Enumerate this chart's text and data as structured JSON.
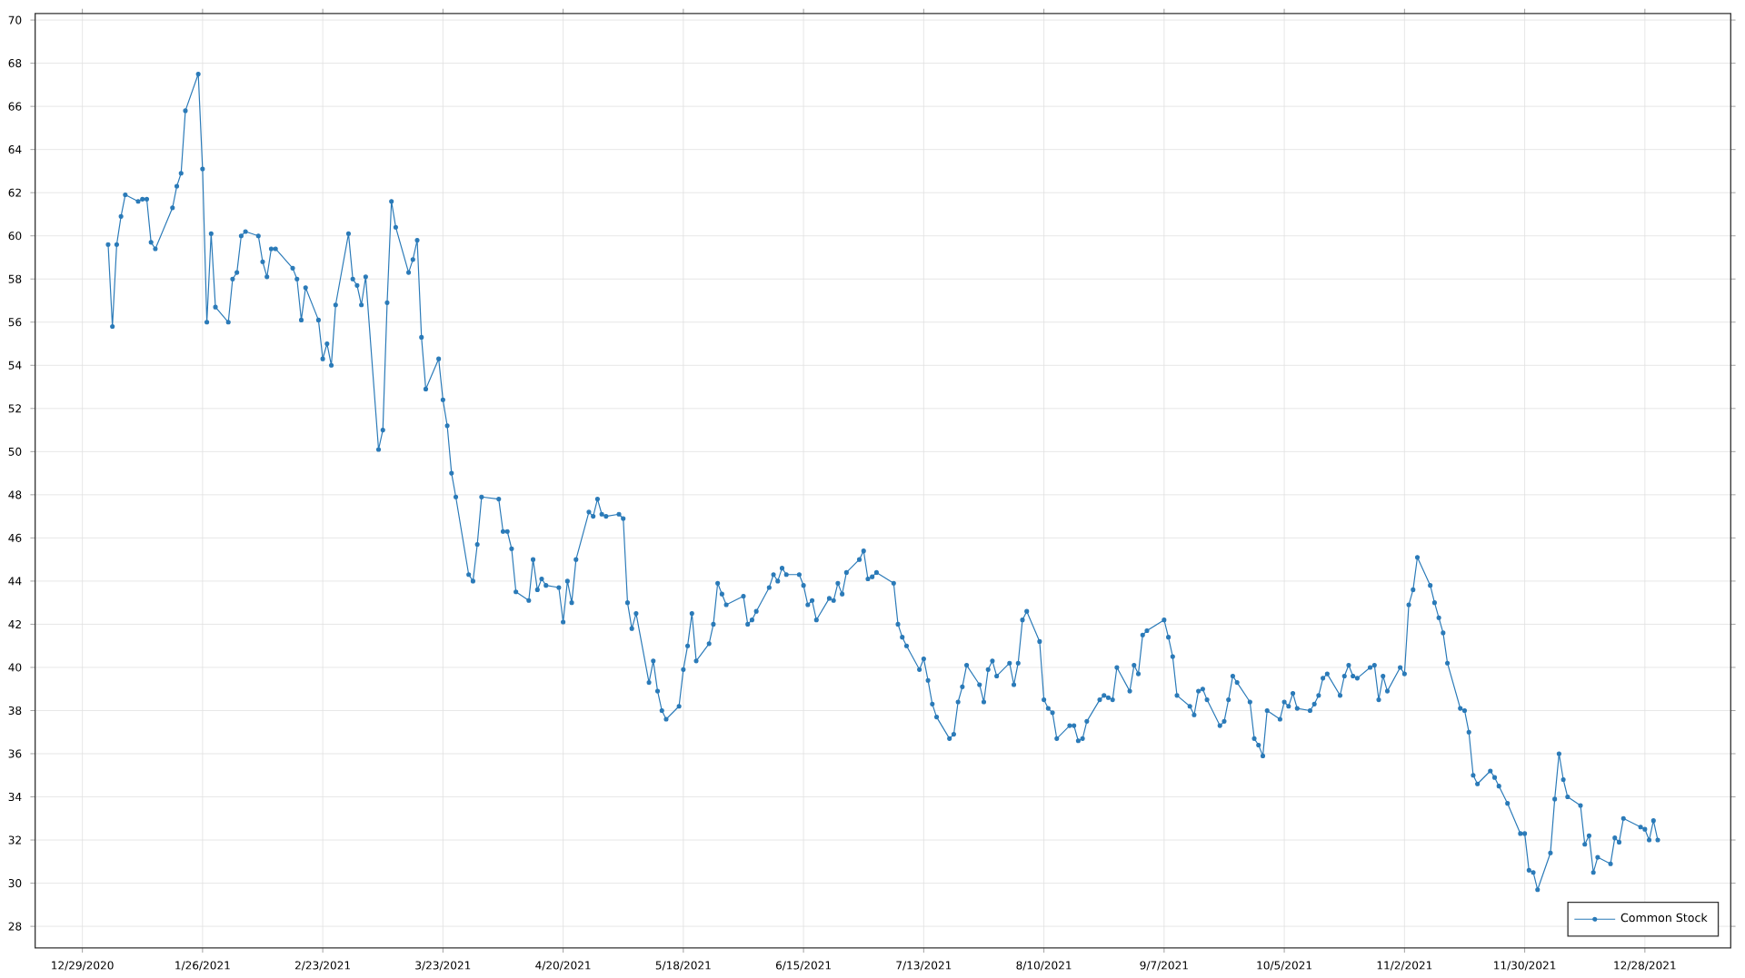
{
  "chart_data": {
    "type": "line",
    "x": [
      "2021-01-04",
      "2021-01-05",
      "2021-01-06",
      "2021-01-07",
      "2021-01-08",
      "2021-01-11",
      "2021-01-12",
      "2021-01-13",
      "2021-01-14",
      "2021-01-15",
      "2021-01-19",
      "2021-01-20",
      "2021-01-21",
      "2021-01-22",
      "2021-01-25",
      "2021-01-26",
      "2021-01-27",
      "2021-01-28",
      "2021-01-29",
      "2021-02-01",
      "2021-02-02",
      "2021-02-03",
      "2021-02-04",
      "2021-02-05",
      "2021-02-08",
      "2021-02-09",
      "2021-02-10",
      "2021-02-11",
      "2021-02-12",
      "2021-02-16",
      "2021-02-17",
      "2021-02-18",
      "2021-02-19",
      "2021-02-22",
      "2021-02-23",
      "2021-02-24",
      "2021-02-25",
      "2021-02-26",
      "2021-03-01",
      "2021-03-02",
      "2021-03-03",
      "2021-03-04",
      "2021-03-05",
      "2021-03-08",
      "2021-03-09",
      "2021-03-10",
      "2021-03-11",
      "2021-03-12",
      "2021-03-15",
      "2021-03-16",
      "2021-03-17",
      "2021-03-18",
      "2021-03-19",
      "2021-03-22",
      "2021-03-23",
      "2021-03-24",
      "2021-03-25",
      "2021-03-26",
      "2021-03-29",
      "2021-03-30",
      "2021-03-31",
      "2021-04-01",
      "2021-04-05",
      "2021-04-06",
      "2021-04-07",
      "2021-04-08",
      "2021-04-09",
      "2021-04-12",
      "2021-04-13",
      "2021-04-14",
      "2021-04-15",
      "2021-04-16",
      "2021-04-19",
      "2021-04-20",
      "2021-04-21",
      "2021-04-22",
      "2021-04-23",
      "2021-04-26",
      "2021-04-27",
      "2021-04-28",
      "2021-04-29",
      "2021-04-30",
      "2021-05-03",
      "2021-05-04",
      "2021-05-05",
      "2021-05-06",
      "2021-05-07",
      "2021-05-10",
      "2021-05-11",
      "2021-05-12",
      "2021-05-13",
      "2021-05-14",
      "2021-05-17",
      "2021-05-18",
      "2021-05-19",
      "2021-05-20",
      "2021-05-21",
      "2021-05-24",
      "2021-05-25",
      "2021-05-26",
      "2021-05-27",
      "2021-05-28",
      "2021-06-01",
      "2021-06-02",
      "2021-06-03",
      "2021-06-04",
      "2021-06-07",
      "2021-06-08",
      "2021-06-09",
      "2021-06-10",
      "2021-06-11",
      "2021-06-14",
      "2021-06-15",
      "2021-06-16",
      "2021-06-17",
      "2021-06-18",
      "2021-06-21",
      "2021-06-22",
      "2021-06-23",
      "2021-06-24",
      "2021-06-25",
      "2021-06-28",
      "2021-06-29",
      "2021-06-30",
      "2021-07-01",
      "2021-07-02",
      "2021-07-06",
      "2021-07-07",
      "2021-07-08",
      "2021-07-09",
      "2021-07-12",
      "2021-07-13",
      "2021-07-14",
      "2021-07-15",
      "2021-07-16",
      "2021-07-19",
      "2021-07-20",
      "2021-07-21",
      "2021-07-22",
      "2021-07-23",
      "2021-07-26",
      "2021-07-27",
      "2021-07-28",
      "2021-07-29",
      "2021-07-30",
      "2021-08-02",
      "2021-08-03",
      "2021-08-04",
      "2021-08-05",
      "2021-08-06",
      "2021-08-09",
      "2021-08-10",
      "2021-08-11",
      "2021-08-12",
      "2021-08-13",
      "2021-08-16",
      "2021-08-17",
      "2021-08-18",
      "2021-08-19",
      "2021-08-20",
      "2021-08-23",
      "2021-08-24",
      "2021-08-25",
      "2021-08-26",
      "2021-08-27",
      "2021-08-30",
      "2021-08-31",
      "2021-09-01",
      "2021-09-02",
      "2021-09-03",
      "2021-09-07",
      "2021-09-08",
      "2021-09-09",
      "2021-09-10",
      "2021-09-13",
      "2021-09-14",
      "2021-09-15",
      "2021-09-16",
      "2021-09-17",
      "2021-09-20",
      "2021-09-21",
      "2021-09-22",
      "2021-09-23",
      "2021-09-24",
      "2021-09-27",
      "2021-09-28",
      "2021-09-29",
      "2021-09-30",
      "2021-10-01",
      "2021-10-04",
      "2021-10-05",
      "2021-10-06",
      "2021-10-07",
      "2021-10-08",
      "2021-10-11",
      "2021-10-12",
      "2021-10-13",
      "2021-10-14",
      "2021-10-15",
      "2021-10-18",
      "2021-10-19",
      "2021-10-20",
      "2021-10-21",
      "2021-10-22",
      "2021-10-25",
      "2021-10-26",
      "2021-10-27",
      "2021-10-28",
      "2021-10-29",
      "2021-11-01",
      "2021-11-02",
      "2021-11-03",
      "2021-11-04",
      "2021-11-05",
      "2021-11-08",
      "2021-11-09",
      "2021-11-10",
      "2021-11-11",
      "2021-11-12",
      "2021-11-15",
      "2021-11-16",
      "2021-11-17",
      "2021-11-18",
      "2021-11-19",
      "2021-11-22",
      "2021-11-23",
      "2021-11-24",
      "2021-11-26",
      "2021-11-29",
      "2021-11-30",
      "2021-12-01",
      "2021-12-02",
      "2021-12-03",
      "2021-12-06",
      "2021-12-07",
      "2021-12-08",
      "2021-12-09",
      "2021-12-10",
      "2021-12-13",
      "2021-12-14",
      "2021-12-15",
      "2021-12-16",
      "2021-12-17",
      "2021-12-20",
      "2021-12-21",
      "2021-12-22",
      "2021-12-23",
      "2021-12-27",
      "2021-12-28",
      "2021-12-29",
      "2021-12-30",
      "2021-12-31"
    ],
    "series": [
      {
        "name": "Common Stock",
        "color": "#2a7ab8",
        "values": [
          59.6,
          55.8,
          59.6,
          60.9,
          61.9,
          61.6,
          61.7,
          61.7,
          59.7,
          59.4,
          61.3,
          62.3,
          62.9,
          65.8,
          67.5,
          63.1,
          56.0,
          60.1,
          56.7,
          56.0,
          58.0,
          58.3,
          60.0,
          60.2,
          60.0,
          58.8,
          58.1,
          59.4,
          59.4,
          58.5,
          58.0,
          56.1,
          57.6,
          56.1,
          54.3,
          55.0,
          54.0,
          56.8,
          60.1,
          58.0,
          57.7,
          56.8,
          58.1,
          50.1,
          51.0,
          56.9,
          61.6,
          60.4,
          58.3,
          58.9,
          59.8,
          55.3,
          52.9,
          54.3,
          52.4,
          51.2,
          49.0,
          47.9,
          44.3,
          44.0,
          45.7,
          47.9,
          47.8,
          46.3,
          46.3,
          45.5,
          43.5,
          43.1,
          45.0,
          43.6,
          44.1,
          43.8,
          43.7,
          42.1,
          44.0,
          43.0,
          45.0,
          47.2,
          47.0,
          47.8,
          47.1,
          47.0,
          47.1,
          46.9,
          43.0,
          41.8,
          42.5,
          39.3,
          40.3,
          38.9,
          38.0,
          37.6,
          38.2,
          39.9,
          41.0,
          42.5,
          40.3,
          41.1,
          42.0,
          43.9,
          43.4,
          42.9,
          43.3,
          42.0,
          42.2,
          42.6,
          43.7,
          44.3,
          44.0,
          44.6,
          44.3,
          44.3,
          43.8,
          42.9,
          43.1,
          42.2,
          43.2,
          43.1,
          43.9,
          43.4,
          44.4,
          45.0,
          45.4,
          44.1,
          44.2,
          44.4,
          43.9,
          42.0,
          41.4,
          41.0,
          39.9,
          40.4,
          39.4,
          38.3,
          37.7,
          36.7,
          36.9,
          38.4,
          39.1,
          40.1,
          39.2,
          38.4,
          39.9,
          40.3,
          39.6,
          40.2,
          39.2,
          40.2,
          42.2,
          42.6,
          41.2,
          38.5,
          38.1,
          37.9,
          36.7,
          37.3,
          37.3,
          36.6,
          36.7,
          37.5,
          38.5,
          38.7,
          38.6,
          38.5,
          40.0,
          38.9,
          40.1,
          39.7,
          41.5,
          41.7,
          42.2,
          41.4,
          40.5,
          38.7,
          38.2,
          37.8,
          38.9,
          39.0,
          38.5,
          37.3,
          37.5,
          38.5,
          39.6,
          39.3,
          38.4,
          36.7,
          36.4,
          35.9,
          38.0,
          37.6,
          38.4,
          38.2,
          38.8,
          38.1,
          38.0,
          38.3,
          38.7,
          39.5,
          39.7,
          38.7,
          39.6,
          40.1,
          39.6,
          39.5,
          40.0,
          40.1,
          38.5,
          39.6,
          38.9,
          40.0,
          39.7,
          42.9,
          43.6,
          45.1,
          43.8,
          43.0,
          42.3,
          41.6,
          40.2,
          38.1,
          38.0,
          37.0,
          35.0,
          34.6,
          35.2,
          34.9,
          34.5,
          33.7,
          32.3,
          32.3,
          30.6,
          30.5,
          29.7,
          31.4,
          33.9,
          36.0,
          34.8,
          34.0,
          33.6,
          31.8,
          32.2,
          30.5,
          31.2,
          30.9,
          32.1,
          31.9,
          33.0,
          32.6,
          32.5,
          32.0,
          32.9,
          32.0
        ]
      }
    ],
    "xlim": [
      "2020-12-18",
      "2022-01-17"
    ],
    "xticks": [
      {
        "value": "2020-12-29",
        "label": "12/29/2020"
      },
      {
        "value": "2021-01-26",
        "label": "1/26/2021"
      },
      {
        "value": "2021-02-23",
        "label": "2/23/2021"
      },
      {
        "value": "2021-03-23",
        "label": "3/23/2021"
      },
      {
        "value": "2021-04-20",
        "label": "4/20/2021"
      },
      {
        "value": "2021-05-18",
        "label": "5/18/2021"
      },
      {
        "value": "2021-06-15",
        "label": "6/15/2021"
      },
      {
        "value": "2021-07-13",
        "label": "7/13/2021"
      },
      {
        "value": "2021-08-10",
        "label": "8/10/2021"
      },
      {
        "value": "2021-09-07",
        "label": "9/7/2021"
      },
      {
        "value": "2021-10-05",
        "label": "10/5/2021"
      },
      {
        "value": "2021-11-02",
        "label": "11/2/2021"
      },
      {
        "value": "2021-11-30",
        "label": "11/30/2021"
      },
      {
        "value": "2021-12-28",
        "label": "12/28/2021"
      }
    ],
    "ylim": [
      27,
      70.3
    ],
    "yticks": [
      28,
      30,
      32,
      34,
      36,
      38,
      40,
      42,
      44,
      46,
      48,
      50,
      52,
      54,
      56,
      58,
      60,
      62,
      64,
      66,
      68,
      70
    ],
    "grid": true,
    "legend": "bottom right",
    "marker": "circle",
    "line_style": "solid"
  }
}
